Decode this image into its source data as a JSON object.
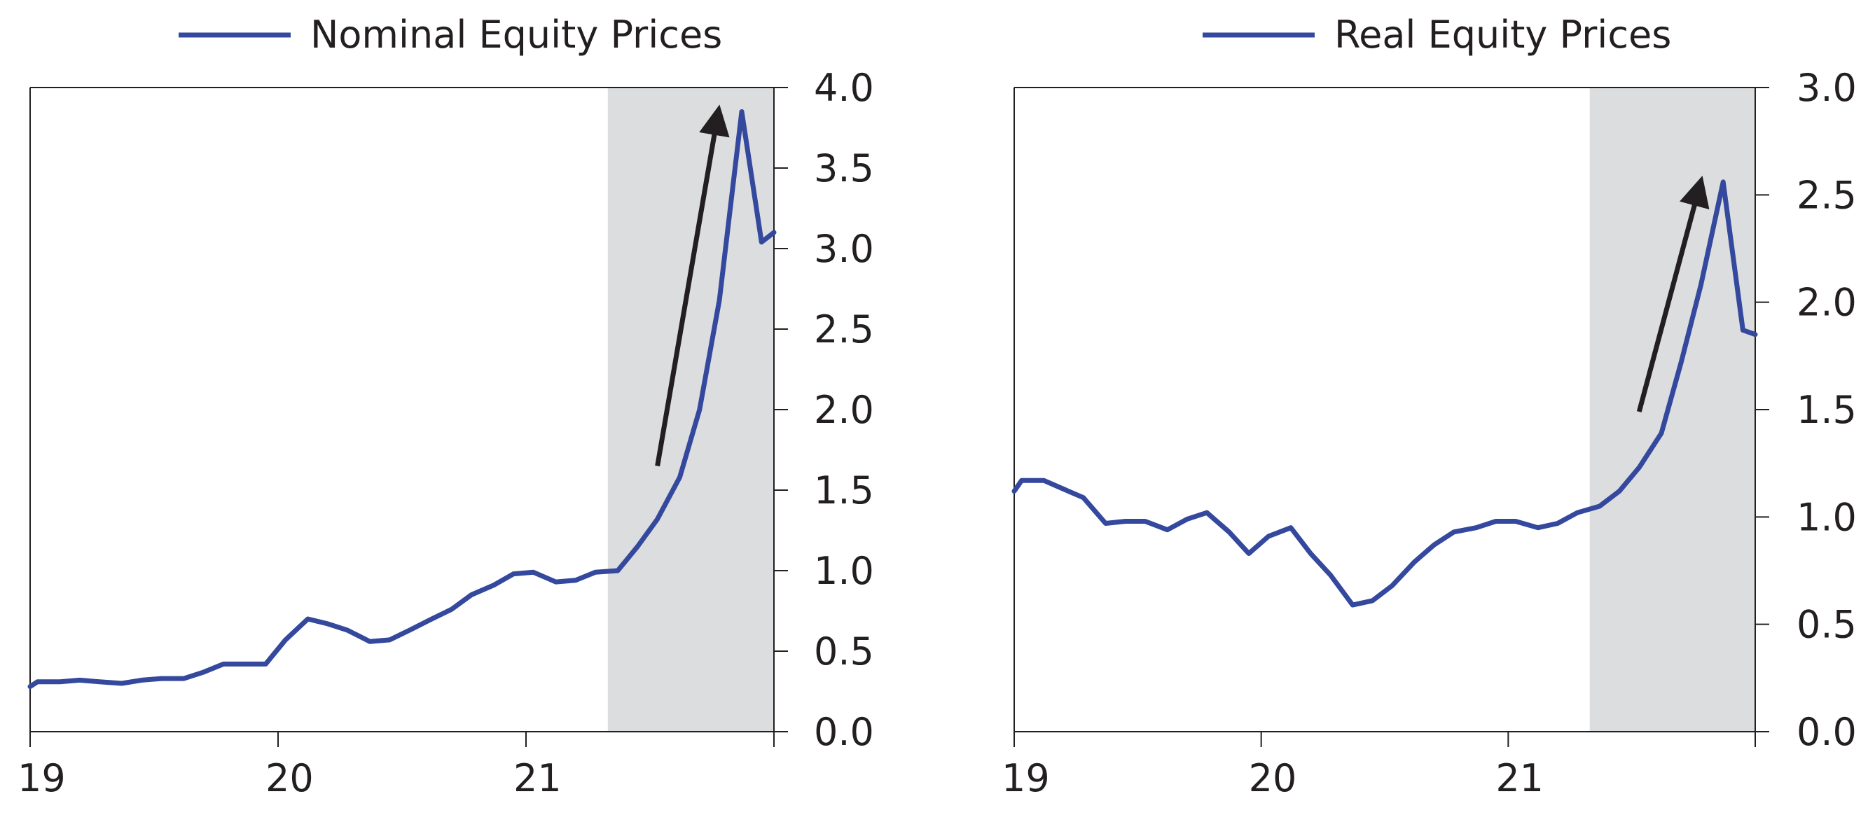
{
  "colors": {
    "series": "#34489e",
    "shade": "#dcdddf",
    "arrow": "#231f20",
    "axis": "#231f20"
  },
  "chart_data": [
    {
      "type": "line",
      "title": "",
      "xlabel": "",
      "ylabel": "",
      "legend_position": "top",
      "grid": false,
      "xlim": [
        2019.0,
        2022.0
      ],
      "ylim": [
        0.0,
        4.0
      ],
      "x_ticks": [
        2019,
        2020,
        2021,
        2022
      ],
      "x_tick_labels": [
        "19",
        "20",
        "21",
        ""
      ],
      "y_ticks": [
        0.0,
        0.5,
        1.0,
        1.5,
        2.0,
        2.5,
        3.0,
        3.5,
        4.0
      ],
      "y_tick_labels": [
        "0.0",
        "0.5",
        "1.0",
        "1.5",
        "2.0",
        "2.5",
        "3.0",
        "3.5",
        "4.0"
      ],
      "shaded_region": {
        "x_start": 2021.33,
        "x_end": 2022.0
      },
      "arrow": {
        "from": [
          2021.53,
          1.65
        ],
        "to": [
          2021.77,
          3.8
        ]
      },
      "series": [
        {
          "name": "Nominal Equity Prices",
          "x": [
            2019.0,
            2019.03,
            2019.12,
            2019.2,
            2019.28,
            2019.37,
            2019.45,
            2019.53,
            2019.62,
            2019.7,
            2019.78,
            2019.87,
            2019.95,
            2020.03,
            2020.12,
            2020.2,
            2020.28,
            2020.37,
            2020.45,
            2020.53,
            2020.62,
            2020.7,
            2020.78,
            2020.87,
            2020.95,
            2021.03,
            2021.12,
            2021.2,
            2021.28,
            2021.37,
            2021.45,
            2021.53,
            2021.62,
            2021.7,
            2021.78,
            2021.87,
            2021.95,
            2022.0
          ],
          "values": [
            0.28,
            0.31,
            0.31,
            0.32,
            0.31,
            0.3,
            0.32,
            0.33,
            0.33,
            0.37,
            0.42,
            0.42,
            0.42,
            0.57,
            0.7,
            0.67,
            0.63,
            0.56,
            0.57,
            0.63,
            0.7,
            0.76,
            0.85,
            0.91,
            0.98,
            0.99,
            0.93,
            0.94,
            0.99,
            1.0,
            1.15,
            1.32,
            1.58,
            2.0,
            2.68,
            3.85,
            3.04,
            3.1
          ]
        }
      ]
    },
    {
      "type": "line",
      "title": "",
      "xlabel": "",
      "ylabel": "",
      "legend_position": "top",
      "grid": false,
      "xlim": [
        2019.0,
        2022.0
      ],
      "ylim": [
        0.0,
        3.0
      ],
      "x_ticks": [
        2019,
        2020,
        2021,
        2022
      ],
      "x_tick_labels": [
        "19",
        "20",
        "21",
        ""
      ],
      "y_ticks": [
        0.0,
        0.5,
        1.0,
        1.5,
        2.0,
        2.5,
        3.0
      ],
      "y_tick_labels": [
        "0.0",
        "0.5",
        "1.0",
        "1.5",
        "2.0",
        "2.5",
        "3.0"
      ],
      "shaded_region": {
        "x_start": 2021.33,
        "x_end": 2022.0
      },
      "arrow": {
        "from": [
          2021.53,
          1.49
        ],
        "to": [
          2021.77,
          2.52
        ]
      },
      "series": [
        {
          "name": "Real Equity Prices",
          "x": [
            2019.0,
            2019.03,
            2019.12,
            2019.2,
            2019.28,
            2019.37,
            2019.45,
            2019.53,
            2019.62,
            2019.7,
            2019.78,
            2019.87,
            2019.95,
            2020.03,
            2020.12,
            2020.2,
            2020.28,
            2020.37,
            2020.45,
            2020.53,
            2020.62,
            2020.7,
            2020.78,
            2020.87,
            2020.95,
            2021.03,
            2021.12,
            2021.2,
            2021.28,
            2021.37,
            2021.45,
            2021.53,
            2021.62,
            2021.7,
            2021.78,
            2021.87,
            2021.95,
            2022.0
          ],
          "values": [
            1.12,
            1.17,
            1.17,
            1.13,
            1.09,
            0.97,
            0.98,
            0.98,
            0.94,
            0.99,
            1.02,
            0.93,
            0.83,
            0.91,
            0.95,
            0.83,
            0.73,
            0.59,
            0.61,
            0.68,
            0.79,
            0.87,
            0.93,
            0.95,
            0.98,
            0.98,
            0.95,
            0.97,
            1.02,
            1.05,
            1.12,
            1.23,
            1.39,
            1.72,
            2.08,
            2.56,
            1.87,
            1.85
          ]
        }
      ]
    }
  ]
}
